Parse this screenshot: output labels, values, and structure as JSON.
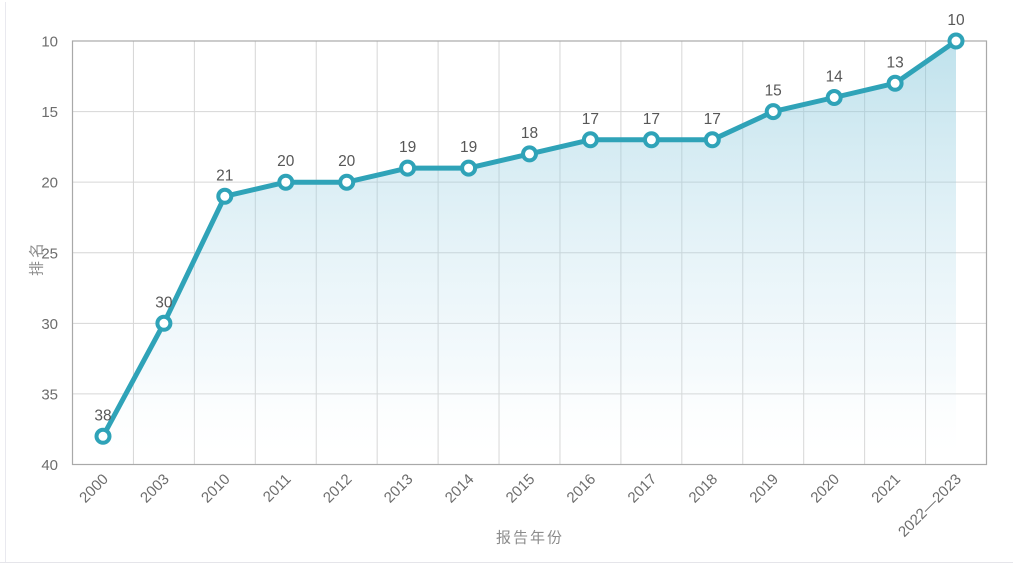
{
  "card": {
    "accent_bar_color": "#b7e3ea",
    "border_color": "#e9e9ef",
    "background": "#ffffff"
  },
  "chart_data": {
    "type": "line",
    "title": "",
    "xlabel": "报告年份",
    "ylabel": "排名",
    "categories": [
      "2000",
      "2003",
      "2010",
      "2011",
      "2012",
      "2013",
      "2014",
      "2015",
      "2016",
      "2017",
      "2018",
      "2019",
      "2020",
      "2021",
      "2022—2023"
    ],
    "series": [
      {
        "name": "排名",
        "values": [
          38,
          30,
          21,
          20,
          20,
          19,
          19,
          18,
          17,
          17,
          17,
          15,
          14,
          13,
          10
        ]
      }
    ],
    "value_labels": [
      "38",
      "30",
      "21",
      "20",
      "20",
      "19",
      "19",
      "18",
      "17",
      "17",
      "17",
      "15",
      "14",
      "13",
      "10"
    ],
    "y_axis": {
      "min": 10,
      "max": 40,
      "step": 5,
      "inverted": true,
      "ticks": [
        10,
        15,
        20,
        25,
        30,
        35,
        40
      ]
    },
    "grid": true,
    "legend": "none",
    "line_color": "#2fa3b8",
    "marker_fill": "#ffffff",
    "grid_color": "#d6d6d6",
    "border_color": "#a9a9a9",
    "tick_label_color": "#6d6d6d",
    "value_label_color": "#575757",
    "axis_title_color": "#8c8c8c",
    "area_gradient": {
      "top": "#7fc4d9",
      "top_opacity": 0.5,
      "mid": "#bfe0ee",
      "mid_opacity": 0.16,
      "bottom": "#ffffff"
    }
  }
}
